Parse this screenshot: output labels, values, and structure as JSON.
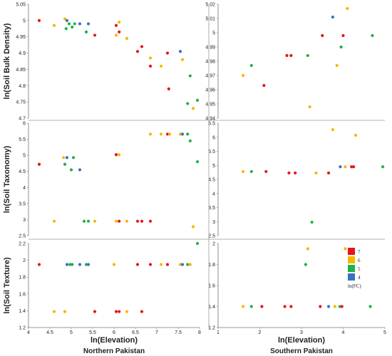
{
  "colors": {
    "7": "#e8141b",
    "6": "#f5b800",
    "5": "#1eb04b",
    "4": "#3a6fc4"
  },
  "legend": {
    "entries": [
      "7",
      "6",
      "5",
      "4"
    ],
    "title": "ln(FC)",
    "placement": "bottom-right"
  },
  "chart_data": [
    {
      "type": "scatter",
      "region": "Northern Pakistan",
      "ylabel": "ln(Soil Bulk Density)",
      "xlabel": "",
      "xlim": [
        4,
        8
      ],
      "ylim": [
        4.7,
        5.05
      ],
      "yticks": [
        "4.7",
        "4.75",
        "4.8",
        "4.85",
        "4.9",
        "4.95",
        "5",
        "5.05"
      ],
      "xticks": [],
      "points": [
        [
          4.25,
          5.0,
          "7"
        ],
        [
          4.6,
          4.985,
          "6"
        ],
        [
          4.85,
          5.005,
          "6"
        ],
        [
          4.9,
          5.0,
          "4"
        ],
        [
          4.95,
          4.99,
          "5"
        ],
        [
          4.88,
          4.975,
          "5"
        ],
        [
          5.02,
          4.98,
          "5"
        ],
        [
          5.08,
          4.99,
          "5"
        ],
        [
          5.2,
          4.99,
          "4"
        ],
        [
          5.35,
          4.965,
          "5"
        ],
        [
          5.4,
          4.99,
          "4"
        ],
        [
          5.55,
          4.955,
          "7"
        ],
        [
          6.05,
          4.955,
          "6"
        ],
        [
          6.05,
          4.985,
          "7"
        ],
        [
          6.12,
          4.995,
          "6"
        ],
        [
          6.12,
          4.965,
          "7"
        ],
        [
          6.3,
          4.945,
          "6"
        ],
        [
          6.55,
          4.905,
          "7"
        ],
        [
          6.65,
          4.92,
          "7"
        ],
        [
          6.85,
          4.885,
          "6"
        ],
        [
          6.85,
          4.86,
          "7"
        ],
        [
          7.1,
          4.86,
          "6"
        ],
        [
          7.25,
          4.9,
          "7"
        ],
        [
          7.28,
          4.79,
          "7"
        ],
        [
          7.55,
          4.905,
          "4"
        ],
        [
          7.6,
          4.88,
          "6"
        ],
        [
          7.72,
          4.745,
          "5"
        ],
        [
          7.78,
          4.83,
          "5"
        ],
        [
          7.85,
          4.73,
          "6"
        ],
        [
          7.95,
          4.755,
          "5"
        ]
      ]
    },
    {
      "type": "scatter",
      "region": "Southern Pakistan",
      "ylabel": "",
      "xlabel": "",
      "xlim": [
        1,
        5
      ],
      "ylim": [
        4.94,
        5.02
      ],
      "yticks": [
        "4.94",
        "4.95",
        "4.96",
        "4.97",
        "4.98",
        "4.99",
        "5",
        "5.01",
        "5.02"
      ],
      "xticks": [],
      "points": [
        [
          1.6,
          4.97,
          "6"
        ],
        [
          1.8,
          4.977,
          "5"
        ],
        [
          2.1,
          4.963,
          "7"
        ],
        [
          2.65,
          4.984,
          "7"
        ],
        [
          2.75,
          4.984,
          "7"
        ],
        [
          3.15,
          4.984,
          "5"
        ],
        [
          3.2,
          4.948,
          "6"
        ],
        [
          3.5,
          4.998,
          "7"
        ],
        [
          3.75,
          5.011,
          "4"
        ],
        [
          3.85,
          4.977,
          "6"
        ],
        [
          3.95,
          4.99,
          "5"
        ],
        [
          4.0,
          4.998,
          "7"
        ],
        [
          4.1,
          5.017,
          "6"
        ],
        [
          4.7,
          4.998,
          "5"
        ]
      ]
    },
    {
      "type": "scatter",
      "region": "Northern Pakistan",
      "ylabel": "ln(Soil Taxonomy)",
      "xlabel": "",
      "xlim": [
        4,
        8
      ],
      "ylim": [
        2.5,
        6
      ],
      "yticks": [
        "2.5",
        "3",
        "3.5",
        "4",
        "4.5",
        "5",
        "5.5",
        "6"
      ],
      "xticks": [],
      "points": [
        [
          4.25,
          4.72,
          "7"
        ],
        [
          4.6,
          2.95,
          "6"
        ],
        [
          4.82,
          4.93,
          "6"
        ],
        [
          4.9,
          4.93,
          "4"
        ],
        [
          4.85,
          4.72,
          "5"
        ],
        [
          5.05,
          4.93,
          "5"
        ],
        [
          5.0,
          4.55,
          "5"
        ],
        [
          5.2,
          4.55,
          "4"
        ],
        [
          5.3,
          2.95,
          "5"
        ],
        [
          5.4,
          2.95,
          "5"
        ],
        [
          5.55,
          2.95,
          "6"
        ],
        [
          6.05,
          5.02,
          "7"
        ],
        [
          6.12,
          5.02,
          "6"
        ],
        [
          6.05,
          2.95,
          "6"
        ],
        [
          6.12,
          2.95,
          "7"
        ],
        [
          6.3,
          2.95,
          "6"
        ],
        [
          6.55,
          2.95,
          "7"
        ],
        [
          6.65,
          2.95,
          "7"
        ],
        [
          6.85,
          2.95,
          "7"
        ],
        [
          6.85,
          5.66,
          "6"
        ],
        [
          7.1,
          5.66,
          "6"
        ],
        [
          7.25,
          5.66,
          "7"
        ],
        [
          7.3,
          5.66,
          "6"
        ],
        [
          7.55,
          5.66,
          "6"
        ],
        [
          7.6,
          5.66,
          "4"
        ],
        [
          7.72,
          5.66,
          "5"
        ],
        [
          7.78,
          5.45,
          "5"
        ],
        [
          7.85,
          2.78,
          "6"
        ],
        [
          7.95,
          4.8,
          "5"
        ]
      ]
    },
    {
      "type": "scatter",
      "region": "Southern Pakistan",
      "ylabel": "",
      "xlabel": "",
      "xlim": [
        1,
        5
      ],
      "ylim": [
        2.5,
        6.5
      ],
      "yticks": [
        "2.5",
        "3",
        "3.5",
        "4",
        "4.5",
        "5",
        "5.5",
        "6",
        "6.5"
      ],
      "xticks": [],
      "points": [
        [
          1.6,
          4.78,
          "6"
        ],
        [
          1.8,
          4.78,
          "5"
        ],
        [
          2.15,
          4.78,
          "7"
        ],
        [
          2.7,
          4.73,
          "7"
        ],
        [
          2.85,
          4.73,
          "7"
        ],
        [
          3.25,
          2.98,
          "5"
        ],
        [
          3.35,
          4.73,
          "6"
        ],
        [
          3.65,
          4.73,
          "7"
        ],
        [
          3.75,
          6.27,
          "6"
        ],
        [
          3.93,
          4.95,
          "4"
        ],
        [
          4.05,
          4.95,
          "6"
        ],
        [
          4.2,
          4.95,
          "7"
        ],
        [
          4.25,
          4.95,
          "7"
        ],
        [
          4.3,
          6.07,
          "6"
        ],
        [
          4.95,
          4.95,
          "5"
        ]
      ]
    },
    {
      "type": "scatter",
      "region": "Northern Pakistan",
      "ylabel": "ln(Soil Texture)",
      "xlabel": "ln(Elevation)",
      "xlim": [
        4,
        8
      ],
      "ylim": [
        1.2,
        2.2
      ],
      "yticks": [
        "1.2",
        "1.4",
        "1.6",
        "1.8",
        "2",
        "2.2"
      ],
      "xticks": [
        "4",
        "4.5",
        "5",
        "5.5",
        "6",
        "6.5",
        "7",
        "7.5",
        "8"
      ],
      "points": [
        [
          4.25,
          1.95,
          "7"
        ],
        [
          4.6,
          1.39,
          "6"
        ],
        [
          4.85,
          1.39,
          "6"
        ],
        [
          4.9,
          1.95,
          "4"
        ],
        [
          4.97,
          1.95,
          "5"
        ],
        [
          5.02,
          1.95,
          "5"
        ],
        [
          5.2,
          1.95,
          "4"
        ],
        [
          5.35,
          1.95,
          "5"
        ],
        [
          5.4,
          1.95,
          "4"
        ],
        [
          5.55,
          1.39,
          "7"
        ],
        [
          6.0,
          1.95,
          "6"
        ],
        [
          6.05,
          1.39,
          "7"
        ],
        [
          6.12,
          1.39,
          "7"
        ],
        [
          6.3,
          1.39,
          "6"
        ],
        [
          6.55,
          1.95,
          "7"
        ],
        [
          6.65,
          1.39,
          "7"
        ],
        [
          6.85,
          1.95,
          "7"
        ],
        [
          7.1,
          1.95,
          "6"
        ],
        [
          7.25,
          1.95,
          "7"
        ],
        [
          7.55,
          1.95,
          "6"
        ],
        [
          7.6,
          1.95,
          "4"
        ],
        [
          7.72,
          1.95,
          "5"
        ],
        [
          7.78,
          1.95,
          "6"
        ],
        [
          7.95,
          2.2,
          "5"
        ]
      ]
    },
    {
      "type": "scatter",
      "region": "Southern Pakistan",
      "ylabel": "",
      "xlabel": "ln(Elevation)",
      "xlim": [
        1,
        5
      ],
      "ylim": [
        1.2,
        2
      ],
      "yticks": [
        "1.2",
        "1.4",
        "1.6",
        "1.8",
        "2"
      ],
      "xticks": [
        "1",
        "2",
        "3",
        "4",
        "5"
      ],
      "points": [
        [
          1.6,
          1.4,
          "6"
        ],
        [
          1.8,
          1.4,
          "5"
        ],
        [
          2.05,
          1.4,
          "7"
        ],
        [
          2.6,
          1.4,
          "7"
        ],
        [
          2.75,
          1.4,
          "7"
        ],
        [
          3.1,
          1.8,
          "5"
        ],
        [
          3.15,
          1.95,
          "6"
        ],
        [
          3.45,
          1.4,
          "7"
        ],
        [
          3.65,
          1.4,
          "4"
        ],
        [
          3.8,
          1.4,
          "6"
        ],
        [
          3.92,
          1.4,
          "5"
        ],
        [
          3.97,
          1.4,
          "7"
        ],
        [
          4.05,
          1.95,
          "6"
        ],
        [
          4.65,
          1.4,
          "5"
        ]
      ]
    }
  ],
  "regions": {
    "north": "Northern Pakistan",
    "south": "Southern Pakistan"
  }
}
